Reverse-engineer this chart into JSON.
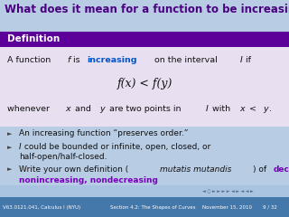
{
  "bg_color": "#b8cce4",
  "title_text": "What does it mean for a function to be increasing?",
  "title_color": "#4b0082",
  "title_bg": "#b8cce4",
  "title_fontsize": 8.5,
  "def_box_bg": "#5c0099",
  "def_box_label": "Definition",
  "def_box_label_color": "#ffffff",
  "def_body_bg": "#e8e0f0",
  "def_line1_plain1": "A function ",
  "def_line1_italic": "f",
  "def_line1_plain2": " is ",
  "def_line1_colored": "increasing",
  "def_line1_rest1": " on the interval ",
  "def_line1_italic2": "I",
  "def_line1_rest2": " if",
  "def_colored_color": "#0055cc",
  "def_formula": "f(x) < f(y)",
  "def_line3_pre": "whenever ",
  "def_line3_x": "x",
  "def_line3_mid": " and ",
  "def_line3_y": "y",
  "def_line3_post": " are two points in ",
  "def_line3_I": "I",
  "def_line3_end": " with ",
  "def_line3_xy": "x < y",
  "def_line3_dot": ".",
  "bullets": [
    "An increasing function “preserves order.”",
    " could be bounded or infinite, open, closed, or",
    "half-open/half-closed.",
    "Write your own definition (",
    "mutatis mutandis",
    ") of "
  ],
  "bullet_b2_italic": "I",
  "bullet_colored": "decreasing,",
  "bullet_colored2": "nonincreasing, nondecreasing",
  "bullet_colored_color": "#7700bb",
  "footer_left": "V63.0121.041, Calculus I (NYU)",
  "footer_mid": "Section 4.2: The Shapes of Curves",
  "footer_right": "November 15, 2010",
  "footer_page": "9 / 32",
  "footer_bg": "#4477aa"
}
